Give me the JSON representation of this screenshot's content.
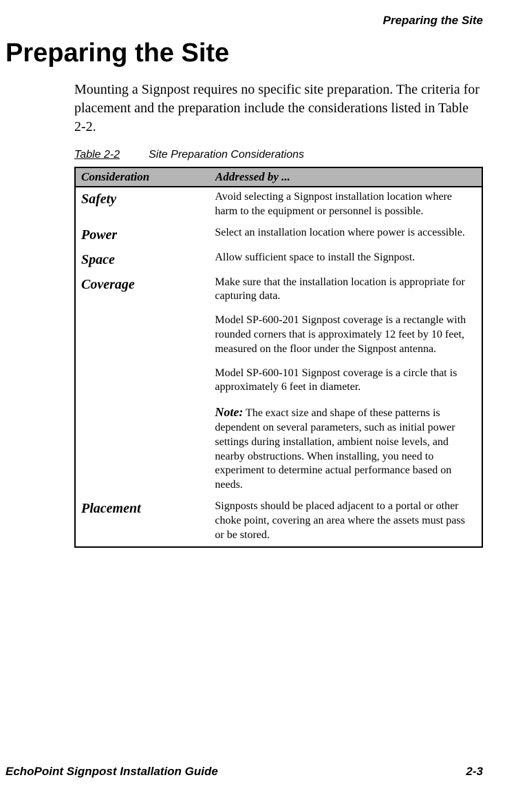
{
  "runningHeader": "Preparing the Site",
  "mainTitle": "Preparing the Site",
  "intro": "Mounting a Signpost requires no specific site preparation. The criteria for placement and the preparation include the considerations listed in Table 2-2.",
  "tableCaption": {
    "number": "Table 2-2",
    "title": "Site Preparation Considerations"
  },
  "table": {
    "headers": {
      "col1": "Consideration",
      "col2": "Addressed by ..."
    },
    "rows": {
      "safety": {
        "label": "Safety",
        "text": "Avoid selecting a Signpost installation location where harm to the equipment or personnel is possible."
      },
      "power": {
        "label": "Power",
        "text": "Select an installation location where power is accessible."
      },
      "space": {
        "label": "Space",
        "text": "Allow sufficient space to install the Signpost."
      },
      "coverage": {
        "label": "Coverage",
        "p1": "Make sure that the installation location is appropriate for capturing data.",
        "p2": "Model SP-600-201 Signpost coverage is a rectangle with rounded corners that is approximately 12 feet by 10 feet, measured on the floor under the Signpost antenna.",
        "p3": "Model SP-600-101 Signpost coverage is a circle that is approximately 6 feet in diameter.",
        "noteLabel": "Note:",
        "noteText": " The exact size and shape of these patterns is dependent on several parameters, such as initial power settings during installation, ambient noise levels, and nearby obstructions. When installing, you need to experiment to determine actual performance based on needs."
      },
      "placement": {
        "label": "Placement",
        "text": "Signposts should be placed adjacent to a portal or other choke point, covering an area where the assets must pass or be stored."
      }
    }
  },
  "footer": {
    "left": "EchoPoint Signpost Installation Guide",
    "right": "2-3"
  }
}
